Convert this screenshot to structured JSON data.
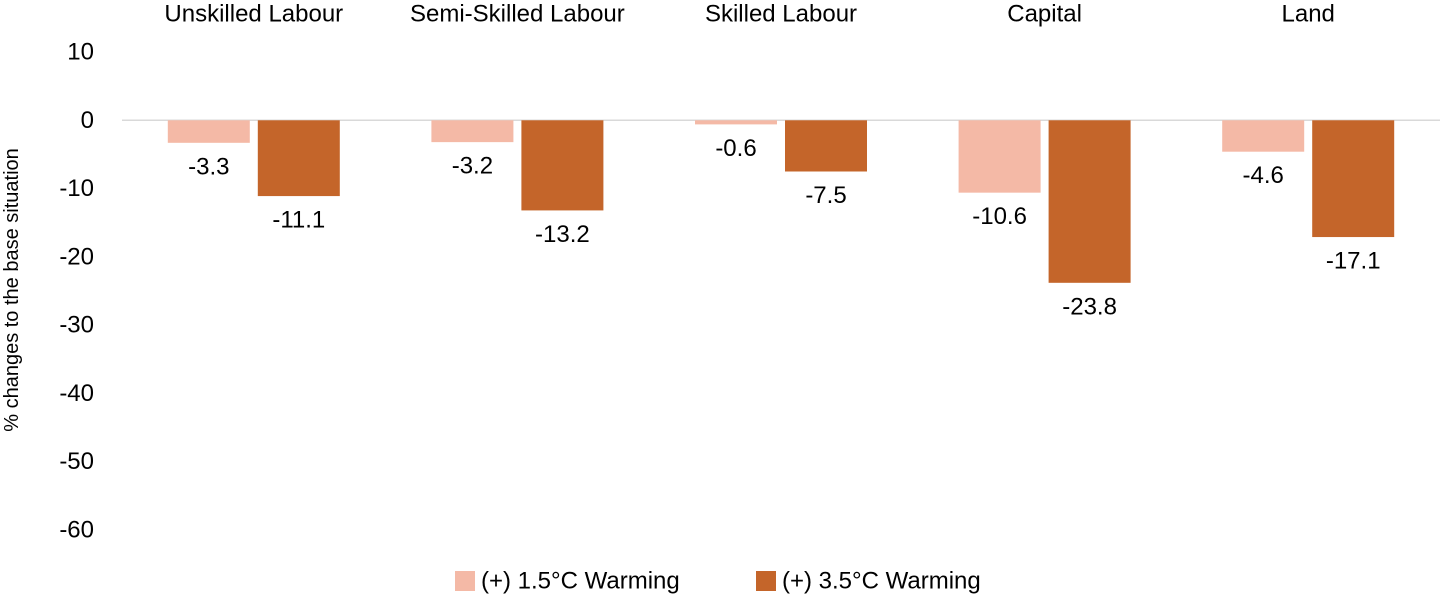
{
  "chart_data": {
    "type": "bar",
    "categories": [
      "Unskilled Labour",
      "Semi-Skilled Labour",
      "Skilled Labour",
      "Capital",
      "Land"
    ],
    "series": [
      {
        "name": "(+) 1.5°C Warming",
        "color": "#f4b9a6",
        "values": [
          -3.3,
          -3.2,
          -0.6,
          -10.6,
          -4.6
        ]
      },
      {
        "name": "(+) 3.5°C Warming",
        "color": "#c4652a",
        "values": [
          -11.1,
          -13.2,
          -7.5,
          -23.8,
          -17.1
        ]
      }
    ],
    "data_labels": [
      [
        "-3.3",
        "-3.2",
        "-0.6",
        "-10.6",
        "-4.6"
      ],
      [
        "-11.1",
        "-13.2",
        "-7.5",
        "-23.8",
        "-17.1"
      ]
    ],
    "ylabel": "% changes to the base situation",
    "ylim": [
      -60,
      10
    ],
    "yticks": [
      "10",
      "0",
      "-10",
      "-20",
      "-30",
      "-40",
      "-50",
      "-60"
    ],
    "category_label_position": "top",
    "legend_position": "bottom",
    "grid": false,
    "zero_line_color": "#d9d9d9"
  }
}
